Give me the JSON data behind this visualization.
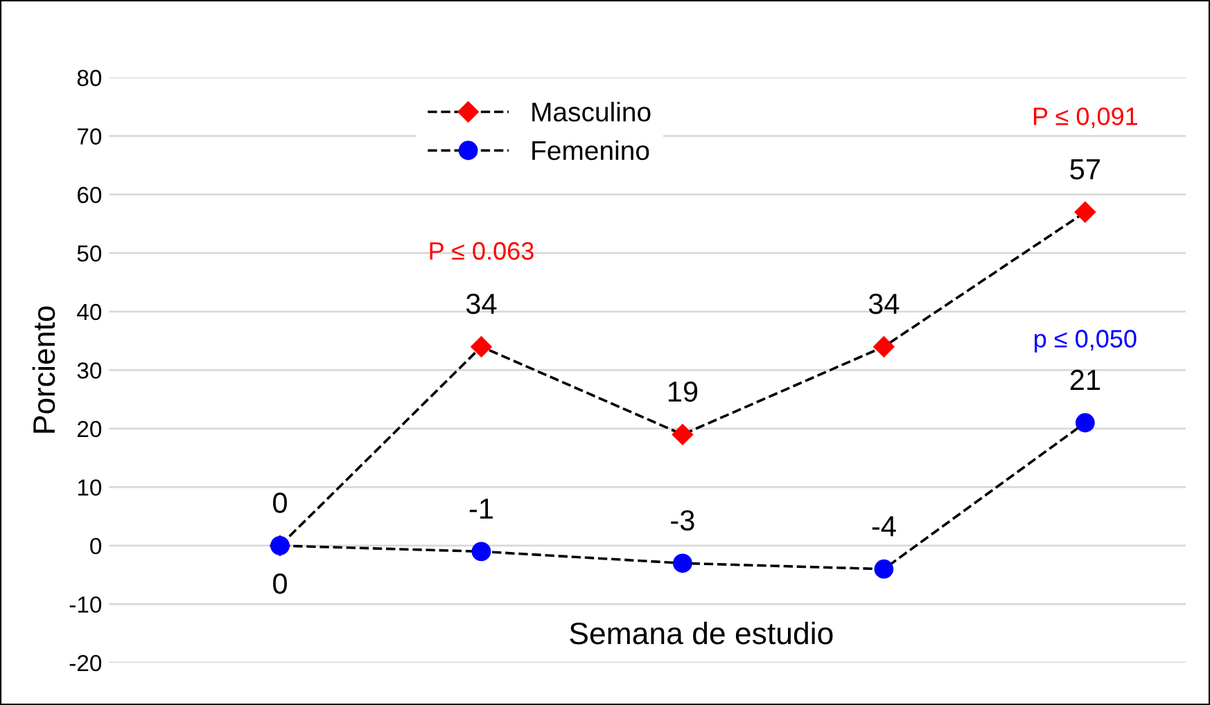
{
  "chart_data": {
    "type": "line",
    "xlabel": "Semana de estudio",
    "ylabel": "Porciento",
    "categories": [
      null,
      null,
      null,
      null,
      null
    ],
    "series": [
      {
        "name": "Masculino",
        "color": "#ff0000",
        "marker": "diamond",
        "values": [
          0,
          34,
          19,
          34,
          57
        ]
      },
      {
        "name": "Femenino",
        "color": "#0000ff",
        "marker": "circle",
        "values": [
          0,
          -1,
          -3,
          -4,
          21
        ]
      }
    ],
    "annotations": [
      "P ≤ 0.063",
      "P ≤ 0,091",
      "p ≤ 0,050"
    ],
    "ylim": [
      -20,
      80
    ],
    "yticks": [
      -20,
      -10,
      0,
      10,
      20,
      30,
      40,
      50,
      60,
      70,
      80
    ],
    "grid": "y",
    "legend": "top",
    "line_style": "dashed",
    "data_labels": true
  }
}
